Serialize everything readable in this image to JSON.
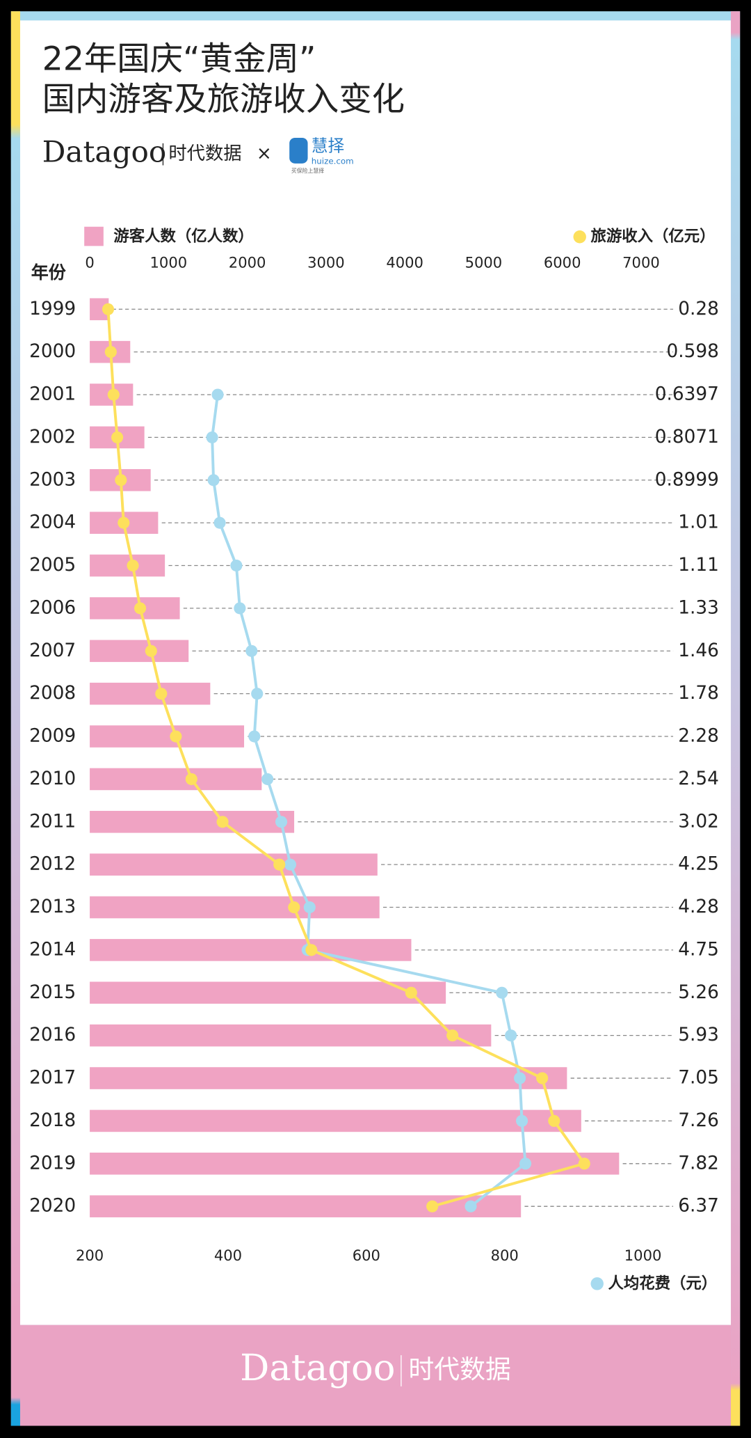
{
  "header": {
    "title": [
      "22年国庆“黄金周”",
      "国内游客及旅游收入变化"
    ],
    "brand": "Datagoo",
    "brand_cn": "时代数据",
    "times": "×",
    "partner": "慧择",
    "partner_url": "huize.com",
    "partner_slogan": "买保险上慧择"
  },
  "chart_data": {
    "type": "bar",
    "category_label": "年份",
    "categories": [
      "1999",
      "2000",
      "2001",
      "2002",
      "2003",
      "2004",
      "2005",
      "2006",
      "2007",
      "2008",
      "2009",
      "2010",
      "2011",
      "2012",
      "2013",
      "2014",
      "2015",
      "2016",
      "2017",
      "2018",
      "2019",
      "2020"
    ],
    "series": [
      {
        "name": "游客人数（亿人数）",
        "color": "#f0a3c3",
        "type": "bar",
        "values": [
          0.28,
          0.598,
          0.6397,
          0.8071,
          0.8999,
          1.01,
          1.11,
          1.33,
          1.46,
          1.78,
          2.28,
          2.54,
          3.02,
          4.25,
          4.28,
          4.75,
          5.26,
          5.93,
          7.05,
          7.26,
          7.82,
          6.37
        ]
      },
      {
        "name": "旅游收入（亿元）",
        "color": "#fde05c",
        "type": "line",
        "axis": "x2",
        "values": [
          233,
          267,
          302,
          349,
          395,
          430,
          547,
          640,
          779,
          907,
          1093,
          1291,
          1686,
          2407,
          2593,
          2814,
          4081,
          4605,
          5744,
          5895,
          6279,
          4349
        ]
      },
      {
        "name": "人均花费（元）",
        "color": "#a6daef",
        "type": "line",
        "axis": "x",
        "values": [
          null,
          null,
          385,
          377,
          379,
          388,
          412,
          417,
          434,
          442,
          438,
          457,
          477,
          490,
          518,
          515,
          796,
          809,
          822,
          825,
          830,
          751
        ]
      }
    ],
    "x2lim": [
      0,
      7000
    ],
    "x2ticks": [
      0,
      1000,
      2000,
      3000,
      4000,
      5000,
      6000,
      7000
    ],
    "xlim": [
      200,
      1000
    ],
    "xticks": [
      200,
      400,
      600,
      800,
      1000
    ]
  }
}
